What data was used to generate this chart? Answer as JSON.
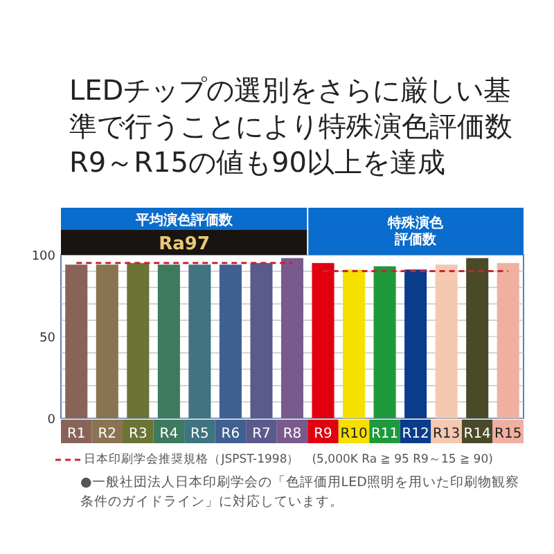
{
  "chart_data": {
    "type": "bar",
    "title": "LEDチップの選別をさらに厳しい基準で行うことにより特殊演色評価数R9～R15の値も90以上を達成",
    "categories": [
      "R1",
      "R2",
      "R3",
      "R4",
      "R5",
      "R6",
      "R7",
      "R8",
      "R9",
      "R10",
      "R11",
      "R12",
      "R13",
      "R14",
      "R15"
    ],
    "series": [
      {
        "colors": [
          "#8a6358",
          "#8a7350",
          "#6b7335",
          "#3d7a5e",
          "#3f7480",
          "#3f6090",
          "#5a5a8c",
          "#7a5a8c",
          "#e00010",
          "#f5e000",
          "#1e9a3c",
          "#0a3c8c",
          "#f5c8b0",
          "#4a4a28",
          "#f0b0a0"
        ],
        "values": [
          94,
          94,
          95,
          94,
          94,
          94,
          95,
          98,
          95,
          91,
          93,
          91,
          94,
          98,
          95
        ]
      },
      {
        "type": "line",
        "name": "日本印刷学会推奨規格（JSPST-1998）　(5,000K Ra ≧ 95 R9～15 ≧ 90)",
        "color": "#cc2233",
        "line_style": "dashed",
        "values": [
          95,
          95,
          95,
          95,
          95,
          95,
          95,
          95,
          null,
          null,
          null,
          null,
          null,
          null,
          null
        ]
      },
      {
        "type": "line",
        "color": "#cc2233",
        "line_style": "dashed",
        "values": [
          null,
          null,
          null,
          null,
          null,
          null,
          null,
          null,
          90,
          90,
          90,
          90,
          90,
          90,
          90
        ]
      }
    ],
    "ylim": [
      0,
      100
    ],
    "yticks": [
      0,
      {
        "value": 10,
        "label": null
      },
      {
        "value": 20,
        "label": null
      },
      {
        "value": 30,
        "label": null
      },
      {
        "value": 40,
        "label": null
      },
      50,
      {
        "value": 60,
        "label": null
      },
      {
        "value": 70,
        "label": null
      },
      {
        "value": 80,
        "label": null
      },
      {
        "value": 90,
        "label": null
      },
      100
    ],
    "grid": "y",
    "legend": "bottom",
    "annotations": [
      "平均演色評価数",
      "Ra97",
      "特殊演色評価数",
      "●一般社団法人日本印刷学会の「色評価用LED照明を用いた印刷物観察条件のガイドライン」に対応しています。"
    ]
  }
}
